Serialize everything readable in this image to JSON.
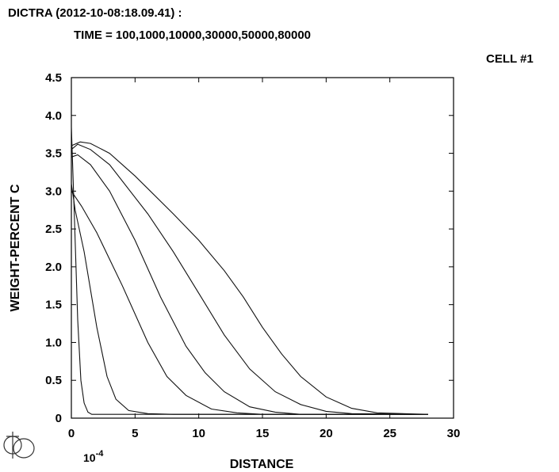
{
  "header": {
    "title_line1": "DICTRA (2012-10-08:18.09.41) :",
    "title_line2": "TIME = 100,1000,10000,30000,50000,80000",
    "cell_label": "CELL #1"
  },
  "chart_data": {
    "type": "line",
    "title": "DICTRA (2012-10-08:18.09.41) :",
    "subtitle": "TIME = 100,1000,10000,30000,50000,80000",
    "xlabel": "DISTANCE",
    "ylabel": "WEIGHT-PERCENT C",
    "x_multiplier": "10-4",
    "xlim": [
      0,
      30
    ],
    "ylim": [
      0,
      4.5
    ],
    "x_ticks": [
      0,
      5,
      10,
      15,
      20,
      25,
      30
    ],
    "x_tick_labels": [
      "0",
      "5",
      "10",
      "15",
      "20",
      "25",
      "30"
    ],
    "y_ticks": [
      0,
      0.5,
      1.0,
      1.5,
      2.0,
      2.5,
      3.0,
      3.5,
      4.0,
      4.5
    ],
    "y_tick_labels": [
      "0",
      "0.5",
      "1.0",
      "1.5",
      "2.0",
      "2.5",
      "3.0",
      "3.5",
      "4.0",
      "4.5"
    ],
    "grid": false,
    "series": [
      {
        "x": [
          0,
          0.25,
          0.5,
          0.75,
          1.0,
          1.3,
          1.6,
          2.0,
          3.0,
          28
        ],
        "y": [
          3.85,
          2.6,
          1.3,
          0.5,
          0.2,
          0.08,
          0.05,
          0.05,
          0.05,
          0.05
        ]
      },
      {
        "x": [
          0,
          0.3,
          1.0,
          2.0,
          2.8,
          3.5,
          4.5,
          6.0,
          8.0,
          28
        ],
        "y": [
          3.1,
          2.75,
          2.2,
          1.2,
          0.55,
          0.25,
          0.1,
          0.06,
          0.05,
          0.05
        ]
      },
      {
        "x": [
          0,
          0.8,
          2.0,
          4.0,
          6.0,
          7.5,
          9.0,
          11.0,
          13.0,
          15.0,
          28
        ],
        "y": [
          3.0,
          2.8,
          2.45,
          1.75,
          1.0,
          0.55,
          0.3,
          0.12,
          0.07,
          0.05,
          0.05
        ]
      },
      {
        "x": [
          0,
          0.5,
          1.5,
          3.0,
          5.0,
          7.0,
          9.0,
          10.5,
          12.0,
          14.0,
          16.0,
          18.0,
          28
        ],
        "y": [
          3.45,
          3.48,
          3.35,
          3.0,
          2.35,
          1.6,
          0.95,
          0.6,
          0.35,
          0.15,
          0.08,
          0.05,
          0.05
        ]
      },
      {
        "x": [
          0,
          0.5,
          1.5,
          3.0,
          6.0,
          8.0,
          10.0,
          12.0,
          14.0,
          16.0,
          18.0,
          20.0,
          22.0,
          28
        ],
        "y": [
          3.55,
          3.62,
          3.55,
          3.35,
          2.7,
          2.2,
          1.65,
          1.1,
          0.65,
          0.35,
          0.18,
          0.09,
          0.06,
          0.05
        ]
      },
      {
        "x": [
          0,
          0.7,
          1.5,
          3.0,
          5.0,
          8.0,
          10.0,
          12.0,
          13.5,
          15.0,
          16.5,
          18.0,
          20.0,
          22.0,
          24.0,
          28
        ],
        "y": [
          3.6,
          3.65,
          3.63,
          3.5,
          3.2,
          2.7,
          2.35,
          1.95,
          1.6,
          1.2,
          0.85,
          0.55,
          0.28,
          0.13,
          0.07,
          0.05
        ]
      }
    ]
  }
}
